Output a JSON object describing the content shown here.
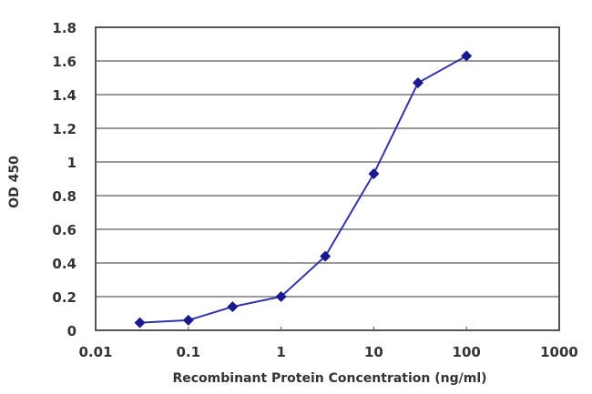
{
  "chart_data": {
    "type": "line",
    "title": "",
    "xlabel": "Recombinant Protein Concentration (ng/ml)",
    "ylabel": "OD 450",
    "xscale": "log",
    "xlim": [
      0.01,
      1000
    ],
    "ylim": [
      0,
      1.8
    ],
    "x_ticks": [
      "0.01",
      "0.1",
      "1",
      "10",
      "100",
      "1000"
    ],
    "y_ticks": [
      "0",
      "0.2",
      "0.4",
      "0.6",
      "0.8",
      "1",
      "1.2",
      "1.4",
      "1.6",
      "1.8"
    ],
    "grid": "horizontal",
    "legend": null,
    "series": [
      {
        "name": "OD 450",
        "color": "#1a1a8c",
        "marker": "diamond",
        "x": [
          0.03,
          0.1,
          0.3,
          1,
          3,
          10,
          30,
          100
        ],
        "values": [
          0.045,
          0.06,
          0.14,
          0.2,
          0.44,
          0.93,
          1.47,
          1.63
        ]
      }
    ]
  },
  "colors": {
    "line": "#3333aa",
    "marker": "#1a1a8c",
    "grid": "#9a9a9a",
    "axis": "#555555",
    "text": "#333333"
  }
}
